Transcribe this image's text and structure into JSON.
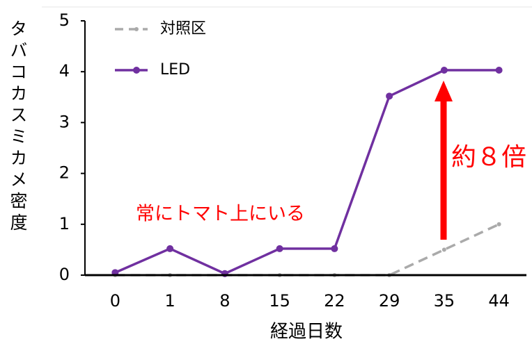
{
  "chart_data": {
    "type": "line",
    "ylabel": "タバコカスミカメ密度",
    "xlabel": "経過日数",
    "categories": [
      "0",
      "1",
      "8",
      "15",
      "22",
      "29",
      "35",
      "44"
    ],
    "series": [
      {
        "name": "対照区",
        "color": "#aaaaaa",
        "dashed": true,
        "values": [
          0,
          0,
          0,
          0,
          0,
          0,
          0.5,
          1.0
        ]
      },
      {
        "name": "LED",
        "color": "#7030a0",
        "dashed": false,
        "values": [
          0.05,
          0.52,
          0.03,
          0.52,
          0.52,
          3.52,
          4.03,
          4.03
        ]
      }
    ],
    "ylim": [
      0,
      5
    ],
    "yticks": [
      0,
      1,
      2,
      3,
      4,
      5
    ],
    "annotations": [
      "常にトマト上にいる",
      "約８倍"
    ],
    "grid": false
  }
}
